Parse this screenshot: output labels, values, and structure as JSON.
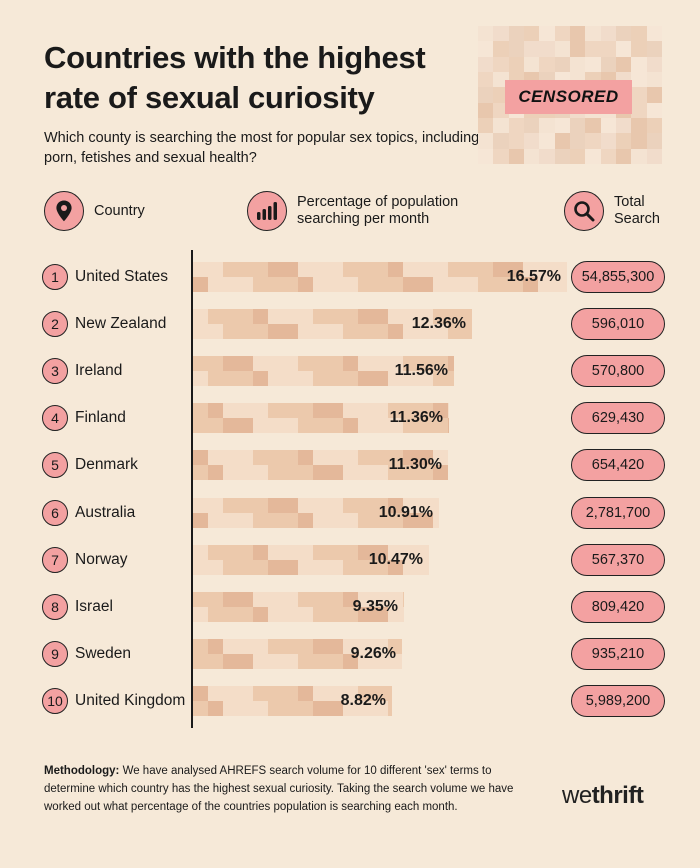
{
  "title": "Countries with the highest rate of sexual curiosity",
  "subtitle": "Which county is searching the most for popular sex topics, including porn, fetishes and sexual health?",
  "censored_label": "CENSORED",
  "headers": {
    "country": "Country",
    "percentage_line1": "Percentage of population",
    "percentage_line2": "searching per month",
    "total_line1": "Total",
    "total_line2": "Search"
  },
  "icons": {
    "country": "location-pin-icon",
    "percentage": "bar-chart-icon",
    "total": "search-icon"
  },
  "colors": {
    "background": "#f6e9d8",
    "accent_pink": "#f3a1a1",
    "bar_pixel_light": "#f4ddc8",
    "bar_pixel_mid": "#ecc9ac",
    "bar_pixel_dark": "#e4b89a"
  },
  "chart_data": {
    "type": "bar",
    "orientation": "horizontal",
    "categories": [
      "United States",
      "New Zealand",
      "Ireland",
      "Finland",
      "Denmark",
      "Australia",
      "Norway",
      "Israel",
      "Sweden",
      "United Kingdom"
    ],
    "ranks": [
      "1",
      "2",
      "3",
      "4",
      "5",
      "6",
      "7",
      "8",
      "9",
      "10"
    ],
    "values": [
      16.57,
      12.36,
      11.56,
      11.36,
      11.3,
      10.91,
      10.47,
      9.35,
      9.26,
      8.82
    ],
    "value_labels": [
      "16.57%",
      "12.36%",
      "11.56%",
      "11.36%",
      "11.30%",
      "10.91%",
      "10.47%",
      "9.35%",
      "9.26%",
      "8.82%"
    ],
    "total_search": [
      "54,855,300",
      "596,010",
      "570,800",
      "629,430",
      "654,420",
      "2,781,700",
      "567,370",
      "809,420",
      "935,210",
      "5,989,200"
    ]
  },
  "methodology_label": "Methodology:",
  "methodology_text": " We have analysed AHREFS search volume for 10 different 'sex' terms to determine which country has the highest sexual curiosity. Taking the search volume we have worked out what percentage of the countries population is searching each month.",
  "logo_we": "we",
  "logo_thrift": "thrift"
}
